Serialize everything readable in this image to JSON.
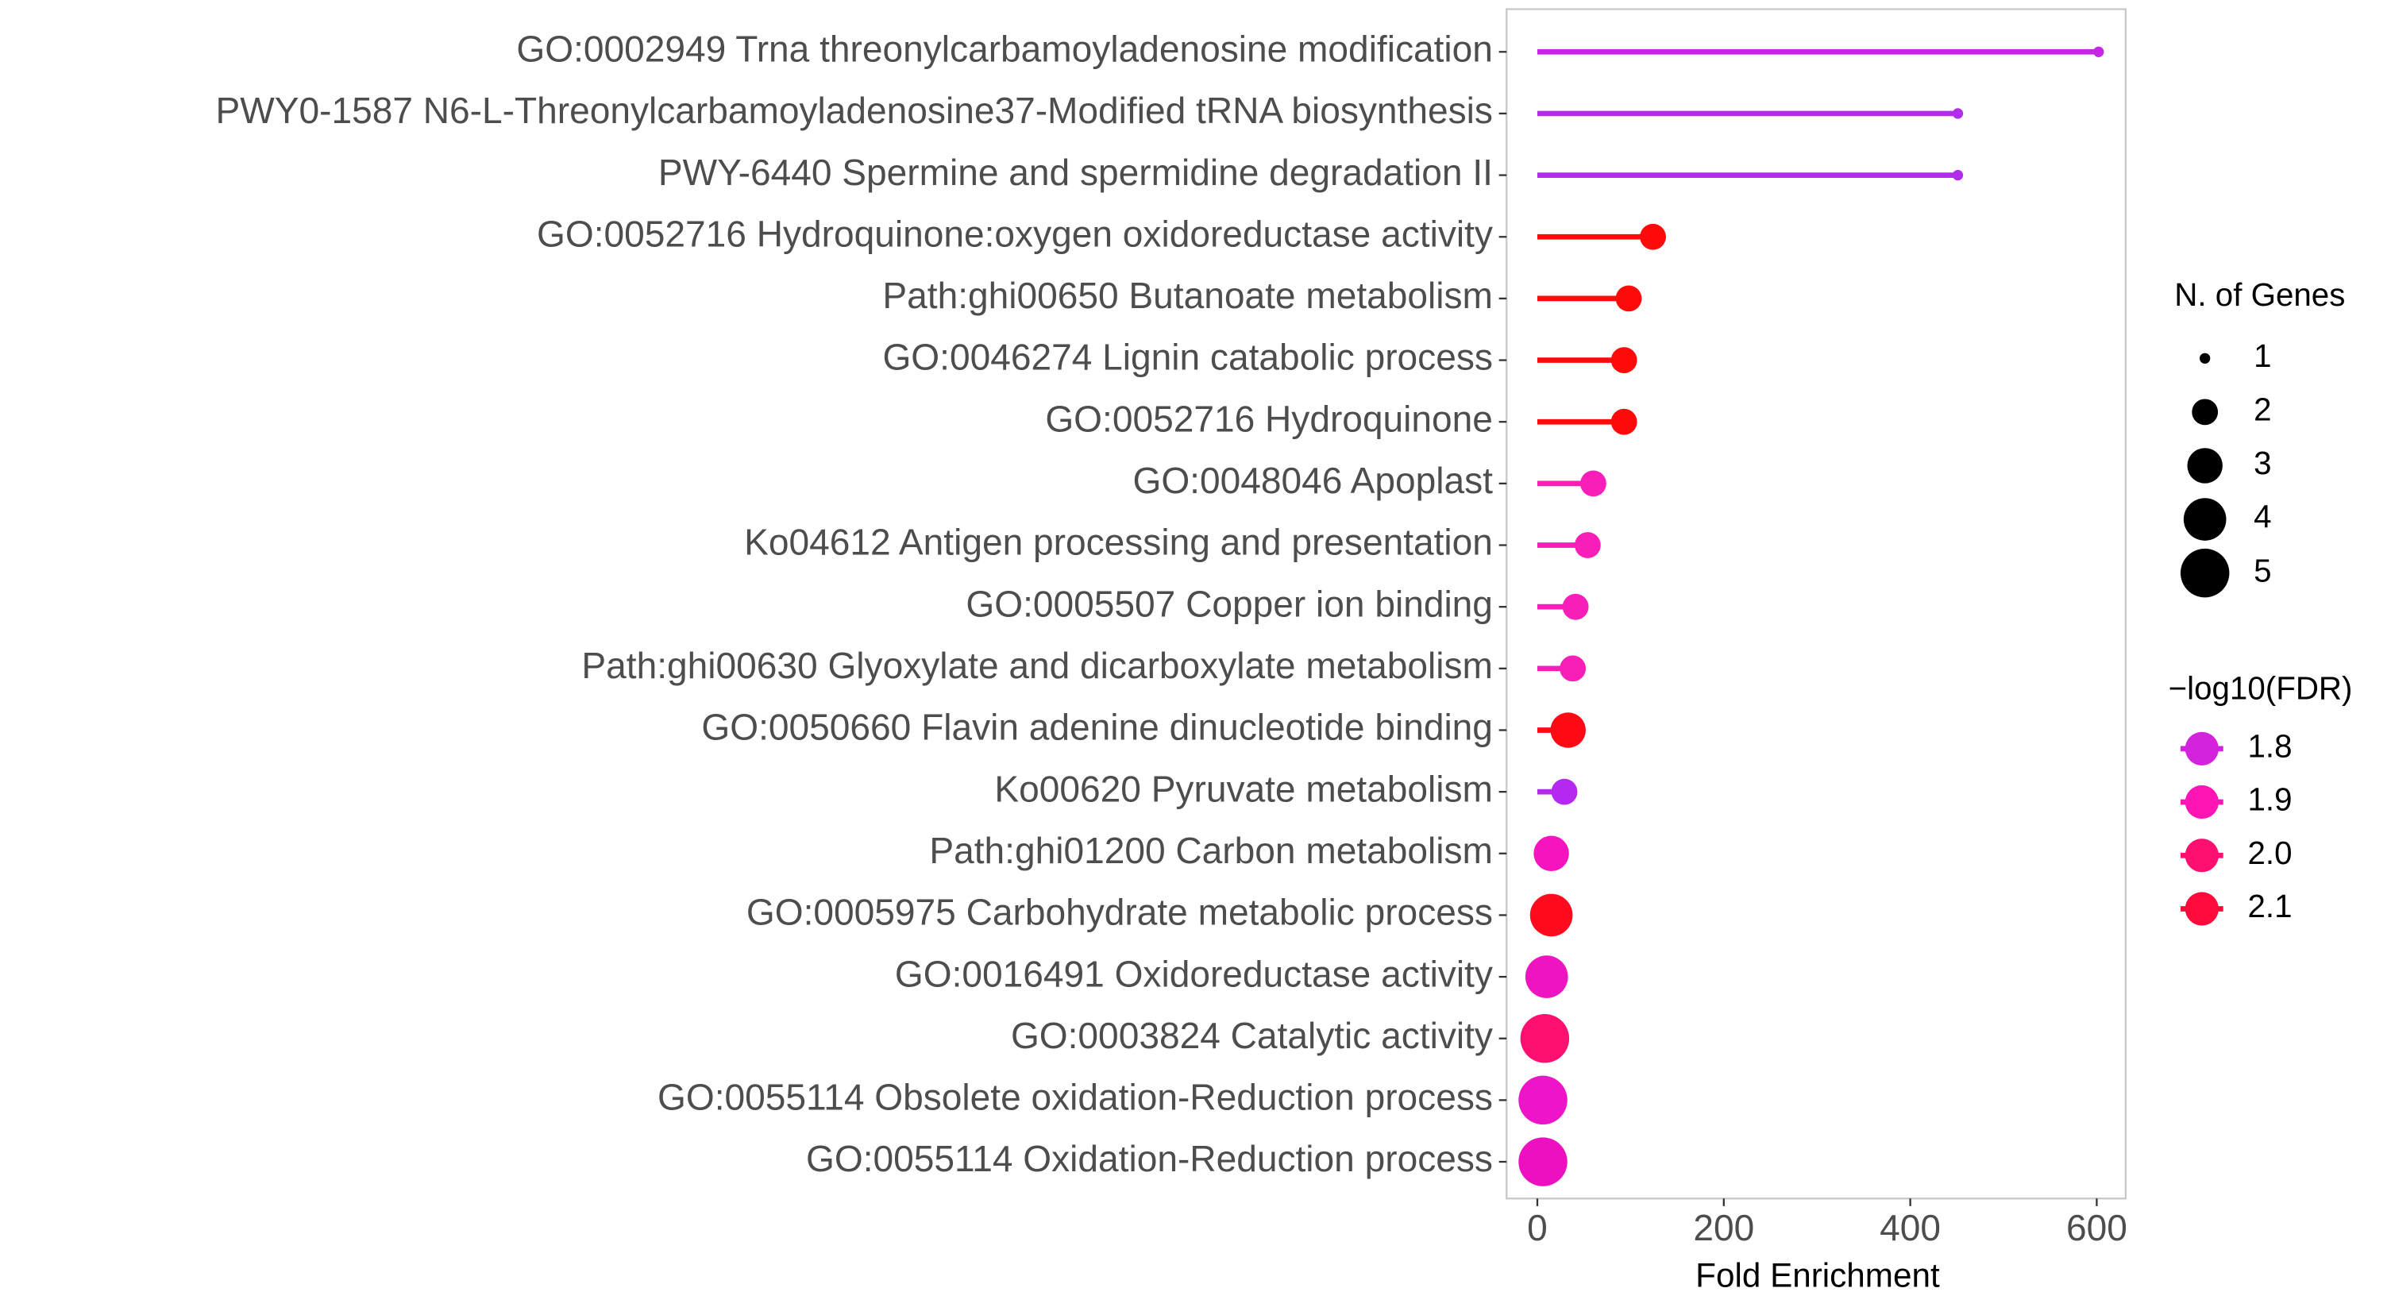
{
  "chart_data": {
    "type": "lollipop",
    "categories": [
      "GO:0002949 Trna threonylcarbamoyladenosine modification",
      "PWY0-1587 N6-L-Threonylcarbamoyladenosine37-Modified tRNA biosynthesis",
      "PWY-6440 Spermine and spermidine degradation II",
      "GO:0052716 Hydroquinone:oxygen oxidoreductase activity",
      "Path:ghi00650 Butanoate metabolism",
      "GO:0046274 Lignin catabolic process",
      "GO:0052716 Hydroquinone",
      "GO:0048046 Apoplast",
      "Ko04612 Antigen processing and presentation",
      "GO:0005507 Copper ion binding",
      "Path:ghi00630 Glyoxylate and dicarboxylate metabolism",
      "GO:0050660 Flavin adenine dinucleotide binding",
      "Ko00620 Pyruvate metabolism",
      "Path:ghi01200 Carbon metabolism",
      "GO:0005975 Carbohydrate metabolic process",
      "GO:0016491 Oxidoreductase activity",
      "GO:0003824 Catalytic activity",
      "GO:0055114 Obsolete oxidation-Reduction process",
      "GO:0055114 Oxidation-Reduction process"
    ],
    "values": [
      602,
      451,
      451,
      124,
      98,
      93,
      93,
      60,
      54,
      41,
      38,
      33,
      29,
      15,
      15,
      10,
      8,
      6,
      6
    ],
    "sizes": [
      1,
      1,
      1,
      2,
      2,
      2,
      2,
      2,
      2,
      2,
      2,
      3,
      2,
      3,
      4,
      4,
      5,
      5,
      5
    ],
    "colors": [
      "#c426e4",
      "#b22cec",
      "#b22cec",
      "#ff0a0a",
      "#ff0a0a",
      "#ff0a0a",
      "#ff0a0a",
      "#fa1eb8",
      "#fa1eb8",
      "#fa1eb8",
      "#fa1eb8",
      "#ff0a14",
      "#b428f0",
      "#f514be",
      "#ff0a1e",
      "#ee14c0",
      "#ff1070",
      "#ee14c8",
      "#ee10c0"
    ],
    "xlabel": "Fold Enrichment",
    "xlim": [
      -33,
      631
    ],
    "xticks": [
      0,
      200,
      400,
      600
    ],
    "size_legend": {
      "title": "N. of Genes",
      "values": [
        1,
        2,
        3,
        4,
        5
      ]
    },
    "color_legend": {
      "title": "−log10(FDR)",
      "ticks": [
        1.8,
        1.9,
        {
          "value": 2,
          "label": "2.0"
        },
        2.1
      ],
      "colors": [
        "#d423dc",
        "#ff14b4",
        "#ff1070",
        "#ff0a3a"
      ]
    }
  }
}
